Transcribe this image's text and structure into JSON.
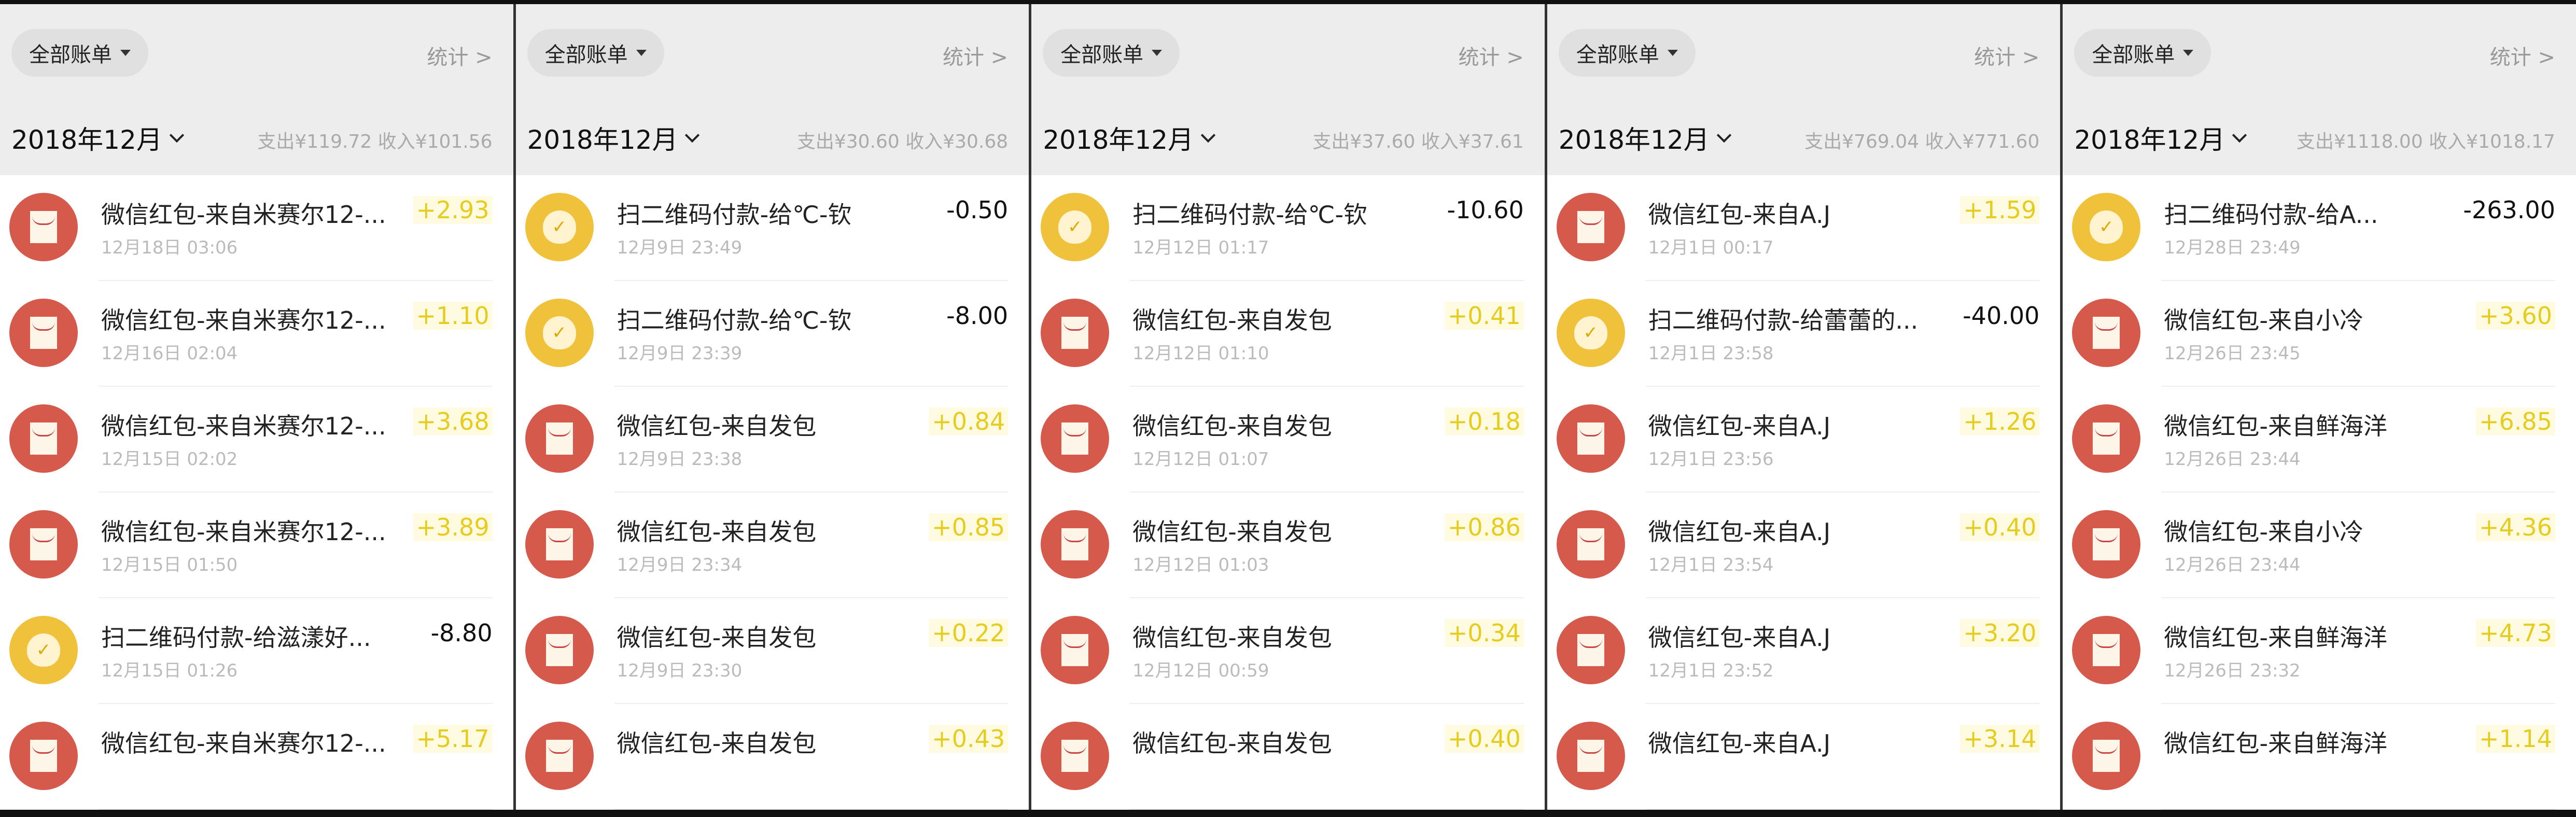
{
  "colors": {
    "income": "#e6cc20",
    "expense": "#111111",
    "red_packet_icon": "#d65a4c",
    "qr_pay_icon": "#f0c23c"
  },
  "panels": [
    {
      "filter": "全部账单",
      "stats": "统计 >",
      "month": "2018年12月",
      "summary": "支出¥119.72  收入¥101.56",
      "rows": [
        {
          "icon": "red-packet-icon",
          "title": "微信红包-来自米赛尔12-...",
          "time": "12月18日 03:06",
          "amount": "+2.93"
        },
        {
          "icon": "red-packet-icon",
          "title": "微信红包-来自米赛尔12-...",
          "time": "12月16日 02:04",
          "amount": "+1.10"
        },
        {
          "icon": "red-packet-icon",
          "title": "微信红包-来自米赛尔12-...",
          "time": "12月15日 02:02",
          "amount": "+3.68"
        },
        {
          "icon": "red-packet-icon",
          "title": "微信红包-来自米赛尔12-...",
          "time": "12月15日 01:50",
          "amount": "+3.89"
        },
        {
          "icon": "qr-pay-icon",
          "title": "扫二维码付款-给滋漾好...",
          "time": "12月15日 01:26",
          "amount": "-8.80"
        },
        {
          "icon": "red-packet-icon",
          "title": "微信红包-来自米赛尔12-...",
          "time": "",
          "amount": "+5.17"
        }
      ]
    },
    {
      "filter": "全部账单",
      "stats": "统计 >",
      "month": "2018年12月",
      "summary": "支出¥30.60  收入¥30.68",
      "rows": [
        {
          "icon": "qr-pay-icon",
          "title": "扫二维码付款-给℃-钦",
          "time": "12月9日 23:49",
          "amount": "-0.50"
        },
        {
          "icon": "qr-pay-icon",
          "title": "扫二维码付款-给℃-钦",
          "time": "12月9日 23:39",
          "amount": "-8.00"
        },
        {
          "icon": "red-packet-icon",
          "title": "微信红包-来自发包",
          "time": "12月9日 23:38",
          "amount": "+0.84"
        },
        {
          "icon": "red-packet-icon",
          "title": "微信红包-来自发包",
          "time": "12月9日 23:34",
          "amount": "+0.85"
        },
        {
          "icon": "red-packet-icon",
          "title": "微信红包-来自发包",
          "time": "12月9日 23:30",
          "amount": "+0.22"
        },
        {
          "icon": "red-packet-icon",
          "title": "微信红包-来自发包",
          "time": "",
          "amount": "+0.43"
        }
      ]
    },
    {
      "filter": "全部账单",
      "stats": "统计 >",
      "month": "2018年12月",
      "summary": "支出¥37.60  收入¥37.61",
      "rows": [
        {
          "icon": "qr-pay-icon",
          "title": "扫二维码付款-给℃-钦",
          "time": "12月12日 01:17",
          "amount": "-10.60"
        },
        {
          "icon": "red-packet-icon",
          "title": "微信红包-来自发包",
          "time": "12月12日 01:10",
          "amount": "+0.41"
        },
        {
          "icon": "red-packet-icon",
          "title": "微信红包-来自发包",
          "time": "12月12日 01:07",
          "amount": "+0.18"
        },
        {
          "icon": "red-packet-icon",
          "title": "微信红包-来自发包",
          "time": "12月12日 01:03",
          "amount": "+0.86"
        },
        {
          "icon": "red-packet-icon",
          "title": "微信红包-来自发包",
          "time": "12月12日 00:59",
          "amount": "+0.34"
        },
        {
          "icon": "red-packet-icon",
          "title": "微信红包-来自发包",
          "time": "",
          "amount": "+0.40"
        }
      ]
    },
    {
      "filter": "全部账单",
      "stats": "统计 >",
      "month": "2018年12月",
      "summary": "支出¥769.04  收入¥771.60",
      "rows": [
        {
          "icon": "red-packet-icon",
          "title": "微信红包-来自A.J",
          "time": "12月1日 00:17",
          "amount": "+1.59"
        },
        {
          "icon": "qr-pay-icon",
          "title": "扫二维码付款-给蕾蕾的...",
          "time": "12月1日 23:58",
          "amount": "-40.00"
        },
        {
          "icon": "red-packet-icon",
          "title": "微信红包-来自A.J",
          "time": "12月1日 23:56",
          "amount": "+1.26"
        },
        {
          "icon": "red-packet-icon",
          "title": "微信红包-来自A.J",
          "time": "12月1日 23:54",
          "amount": "+0.40"
        },
        {
          "icon": "red-packet-icon",
          "title": "微信红包-来自A.J",
          "time": "12月1日 23:52",
          "amount": "+3.20"
        },
        {
          "icon": "red-packet-icon",
          "title": "微信红包-来自A.J",
          "time": "",
          "amount": "+3.14"
        }
      ]
    },
    {
      "filter": "全部账单",
      "stats": "统计 >",
      "month": "2018年12月",
      "summary": "支出¥1118.00  收入¥1018.17",
      "rows": [
        {
          "icon": "qr-pay-icon",
          "title": "扫二维码付款-给A...",
          "time": "12月28日 23:49",
          "amount": "-263.00"
        },
        {
          "icon": "red-packet-icon",
          "title": "微信红包-来自小冷",
          "time": "12月26日 23:45",
          "amount": "+3.60"
        },
        {
          "icon": "red-packet-icon",
          "title": "微信红包-来自鲜海洋",
          "time": "12月26日 23:44",
          "amount": "+6.85"
        },
        {
          "icon": "red-packet-icon",
          "title": "微信红包-来自小冷",
          "time": "12月26日 23:44",
          "amount": "+4.36"
        },
        {
          "icon": "red-packet-icon",
          "title": "微信红包-来自鲜海洋",
          "time": "12月26日 23:32",
          "amount": "+4.73"
        },
        {
          "icon": "red-packet-icon",
          "title": "微信红包-来自鲜海洋",
          "time": "",
          "amount": "+1.14"
        }
      ]
    }
  ]
}
